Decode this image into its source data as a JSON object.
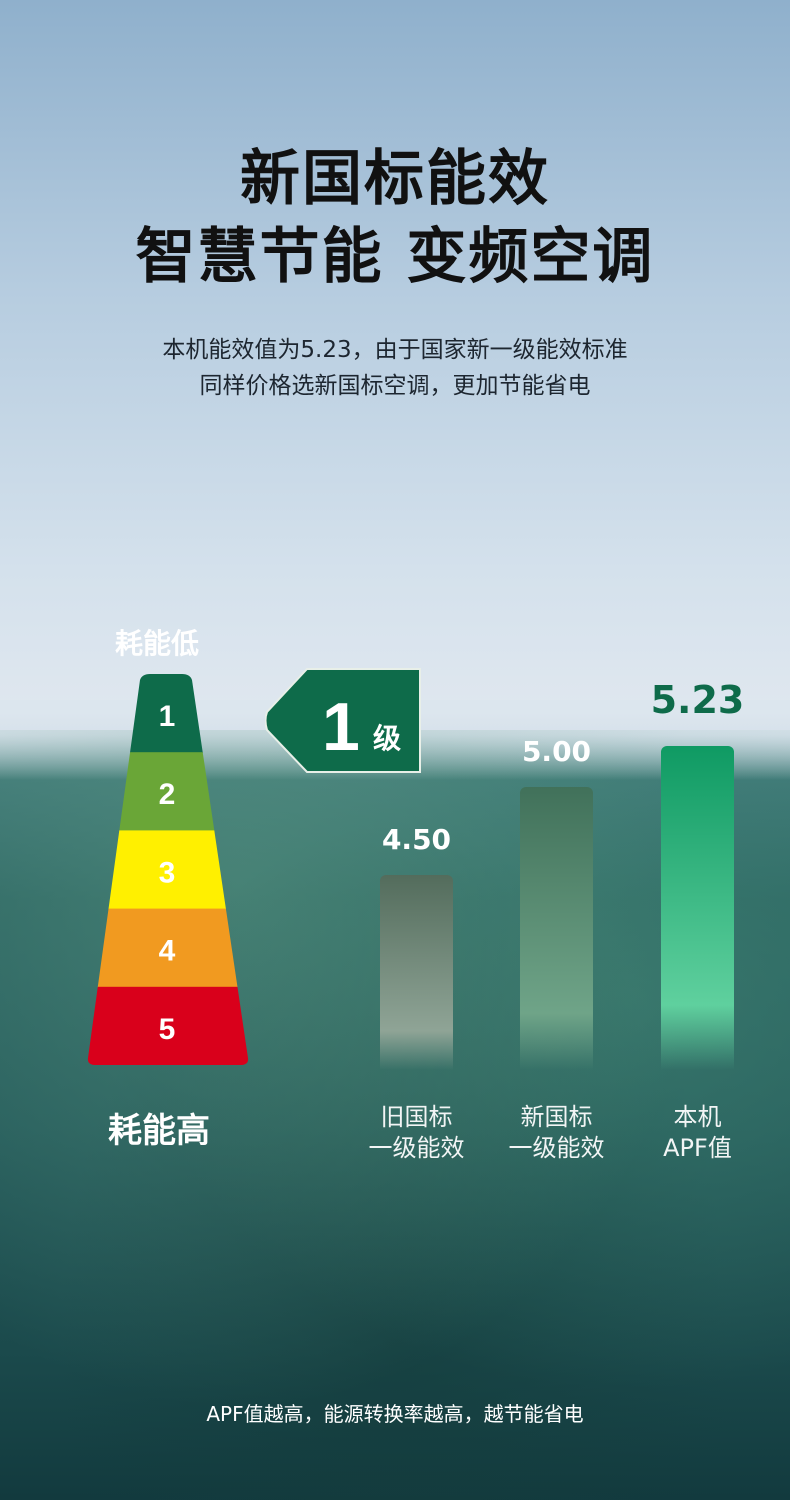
{
  "header": {
    "title_line1": "新国标能效",
    "title_line2": "智慧节能 变频空调",
    "subtitle_line1": "本机能效值为5.23，由于国家新一级能效标准",
    "subtitle_line2": "同样价格选新国标空调，更加节能省电"
  },
  "ladder": {
    "top_label": "耗能低",
    "bottom_label": "耗能高",
    "levels": [
      {
        "n": "1",
        "color": "#0e6b4a"
      },
      {
        "n": "2",
        "color": "#6aa637"
      },
      {
        "n": "3",
        "color": "#fff000"
      },
      {
        "n": "4",
        "color": "#f19a20"
      },
      {
        "n": "5",
        "color": "#d9001b"
      }
    ]
  },
  "badge": {
    "number": "1",
    "unit": "级",
    "color": "#0e6b4a"
  },
  "chart_data": {
    "type": "bar",
    "categories": [
      "旧国标\n一级能效",
      "新国标\n一级能效",
      "本机\nAPF值"
    ],
    "values": [
      4.5,
      5.0,
      5.23
    ],
    "labels": [
      "4.50",
      "5.00",
      "5.23"
    ],
    "ylim": [
      3.4,
      5.23
    ],
    "colors": [
      "#5d7666",
      "#457a5e",
      "#0f9a63"
    ],
    "grid": false
  },
  "footer": {
    "note": "APF值越高，能源转换率越高，越节能省电"
  }
}
